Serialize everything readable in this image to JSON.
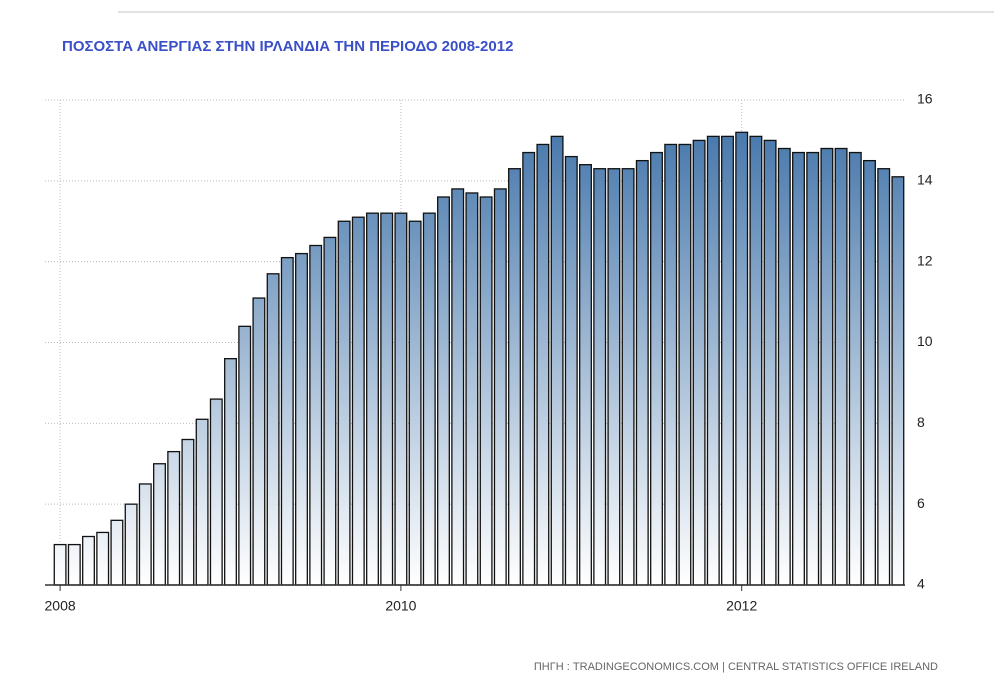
{
  "chart_data": {
    "type": "bar",
    "title": "ΠΟΣΟΣΤΑ ΑΝΕΡΓΙΑΣ ΣΤΗΝ ΙΡΛΑΝΔΙΑ ΤΗΝ ΠΕΡΙΟΔΟ 2008-2012",
    "source": "ΠΗΓΗ : TRADINGECONOMICS.COM | CENTRAL STATISTICS OFFICE IRELAND",
    "categories": [
      "2008",
      null,
      null,
      null,
      null,
      null,
      null,
      null,
      null,
      null,
      null,
      null,
      null,
      null,
      null,
      null,
      null,
      null,
      null,
      null,
      null,
      null,
      null,
      null,
      "2010",
      null,
      null,
      null,
      null,
      null,
      null,
      null,
      null,
      null,
      null,
      null,
      null,
      null,
      null,
      null,
      null,
      null,
      null,
      null,
      null,
      null,
      null,
      null,
      "2012",
      null,
      null,
      null,
      null,
      null,
      null,
      null,
      null,
      null,
      null,
      null
    ],
    "values": [
      5.0,
      5.0,
      5.2,
      5.3,
      5.6,
      6.0,
      6.5,
      7.0,
      7.3,
      7.6,
      8.1,
      8.6,
      9.6,
      10.4,
      11.1,
      11.7,
      12.1,
      12.2,
      12.4,
      12.6,
      13.0,
      13.1,
      13.2,
      13.2,
      13.2,
      13.0,
      13.2,
      13.6,
      13.8,
      13.7,
      13.6,
      13.8,
      14.3,
      14.7,
      14.9,
      15.1,
      14.6,
      14.4,
      14.3,
      14.3,
      14.3,
      14.5,
      14.7,
      14.9,
      14.9,
      15.0,
      15.1,
      15.1,
      15.2,
      15.1,
      15.0,
      14.8,
      14.7,
      14.7,
      14.8,
      14.8,
      14.7,
      14.5,
      14.3,
      14.1
    ],
    "color": "#3b6fa6",
    "ylim": [
      4,
      16
    ],
    "yticks": [
      4,
      6,
      8,
      10,
      12,
      14,
      16
    ],
    "grid": true
  }
}
